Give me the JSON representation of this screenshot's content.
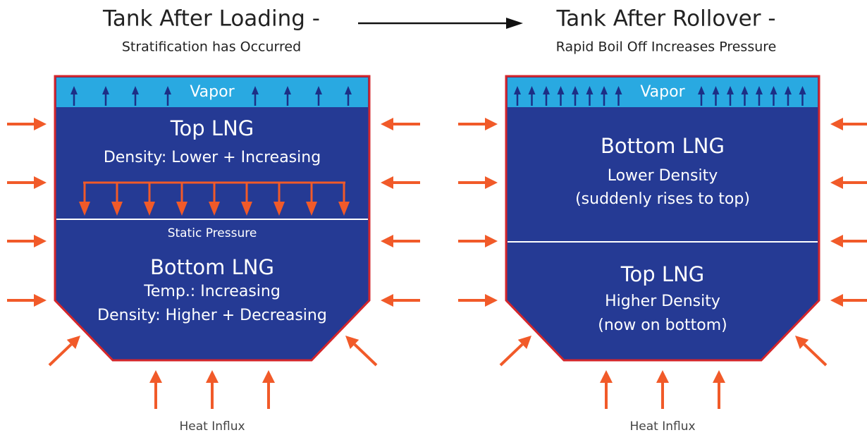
{
  "left": {
    "title": "Tank After Loading -",
    "subtitle": "Stratification has Occurred",
    "vapor": "Vapor",
    "upper_label": "Top LNG",
    "upper_lines": [
      "Density: Lower + Increasing"
    ],
    "static_pressure": "Static Pressure",
    "lower_label": "Bottom LNG",
    "lower_lines": [
      "Temp.:  Increasing",
      "Density: Higher + Decreasing"
    ],
    "footer": "Heat Influx"
  },
  "right": {
    "title": "Tank After Rollover -",
    "subtitle": "Rapid Boil Off Increases Pressure",
    "vapor": "Vapor",
    "upper_label": "Bottom LNG",
    "upper_lines": [
      "Lower Density",
      "(suddenly rises to top)"
    ],
    "lower_label": "Top LNG",
    "lower_lines": [
      "Higher Density",
      "(now on bottom)"
    ],
    "footer": "Heat Influx"
  }
}
